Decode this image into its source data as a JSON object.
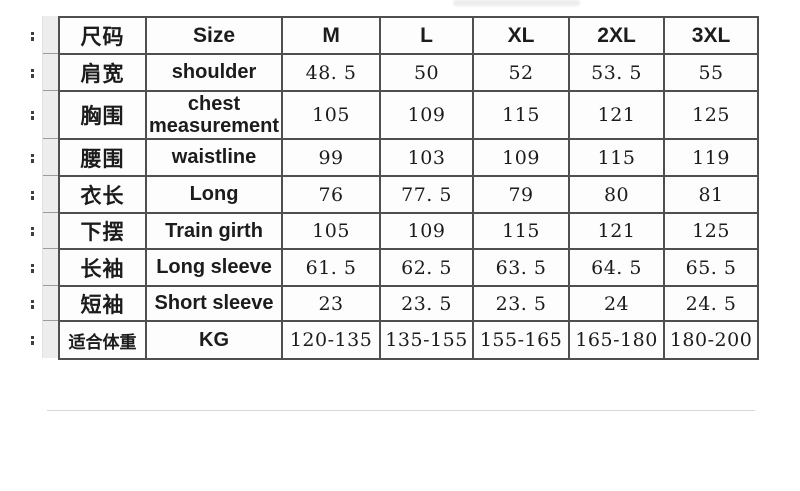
{
  "theme": {
    "border_color": "#4f4f4f",
    "text_color": "#1c1c1c",
    "strip_bg": "#ededed",
    "divider_color": "#d6d6d6",
    "page_bg": "#ffffff"
  },
  "table": {
    "header": {
      "cn": "尺码",
      "en": "Size",
      "sizes": [
        "M",
        "L",
        "XL",
        "2XL",
        "3XL"
      ]
    },
    "rows": [
      {
        "cn": "肩宽",
        "en": "shoulder",
        "values": [
          "48. 5",
          "50",
          "52",
          "53. 5",
          "55"
        ]
      },
      {
        "cn": "胸围",
        "en": "chest measurement",
        "values": [
          "105",
          "109",
          "115",
          "121",
          "125"
        ]
      },
      {
        "cn": "腰围",
        "en": "waistline",
        "values": [
          "99",
          "103",
          "109",
          "115",
          "119"
        ]
      },
      {
        "cn": "衣长",
        "en": "Long",
        "values": [
          "76",
          "77. 5",
          "79",
          "80",
          "81"
        ]
      },
      {
        "cn": "下摆",
        "en": "Train girth",
        "values": [
          "105",
          "109",
          "115",
          "121",
          "125"
        ]
      },
      {
        "cn": "长袖",
        "en": "Long sleeve",
        "values": [
          "61. 5",
          "62. 5",
          "63. 5",
          "64. 5",
          "65. 5"
        ]
      },
      {
        "cn": "短袖",
        "en": "Short sleeve",
        "values": [
          "23",
          "23. 5",
          "23. 5",
          "24",
          "24. 5"
        ]
      },
      {
        "cn": "适合体重",
        "en": "KG",
        "values": [
          "120-135",
          "135-155",
          "155-165",
          "165-180",
          "180-200"
        ]
      }
    ]
  },
  "chart_data": {
    "type": "table",
    "title": "Garment size chart",
    "columns": [
      "尺码",
      "Size",
      "M",
      "L",
      "XL",
      "2XL",
      "3XL"
    ],
    "rows": [
      [
        "肩宽",
        "shoulder",
        48.5,
        50,
        52,
        53.5,
        55
      ],
      [
        "胸围",
        "chest measurement",
        105,
        109,
        115,
        121,
        125
      ],
      [
        "腰围",
        "waistline",
        99,
        103,
        109,
        115,
        119
      ],
      [
        "衣长",
        "Long",
        76,
        77.5,
        79,
        80,
        81
      ],
      [
        "下摆",
        "Train girth",
        105,
        109,
        115,
        121,
        125
      ],
      [
        "长袖",
        "Long sleeve",
        61.5,
        62.5,
        63.5,
        64.5,
        65.5
      ],
      [
        "短袖",
        "Short sleeve",
        23,
        23.5,
        23.5,
        24,
        24.5
      ],
      [
        "适合体重",
        "KG",
        "120-135",
        "135-155",
        "155-165",
        "165-180",
        "180-200"
      ]
    ]
  }
}
